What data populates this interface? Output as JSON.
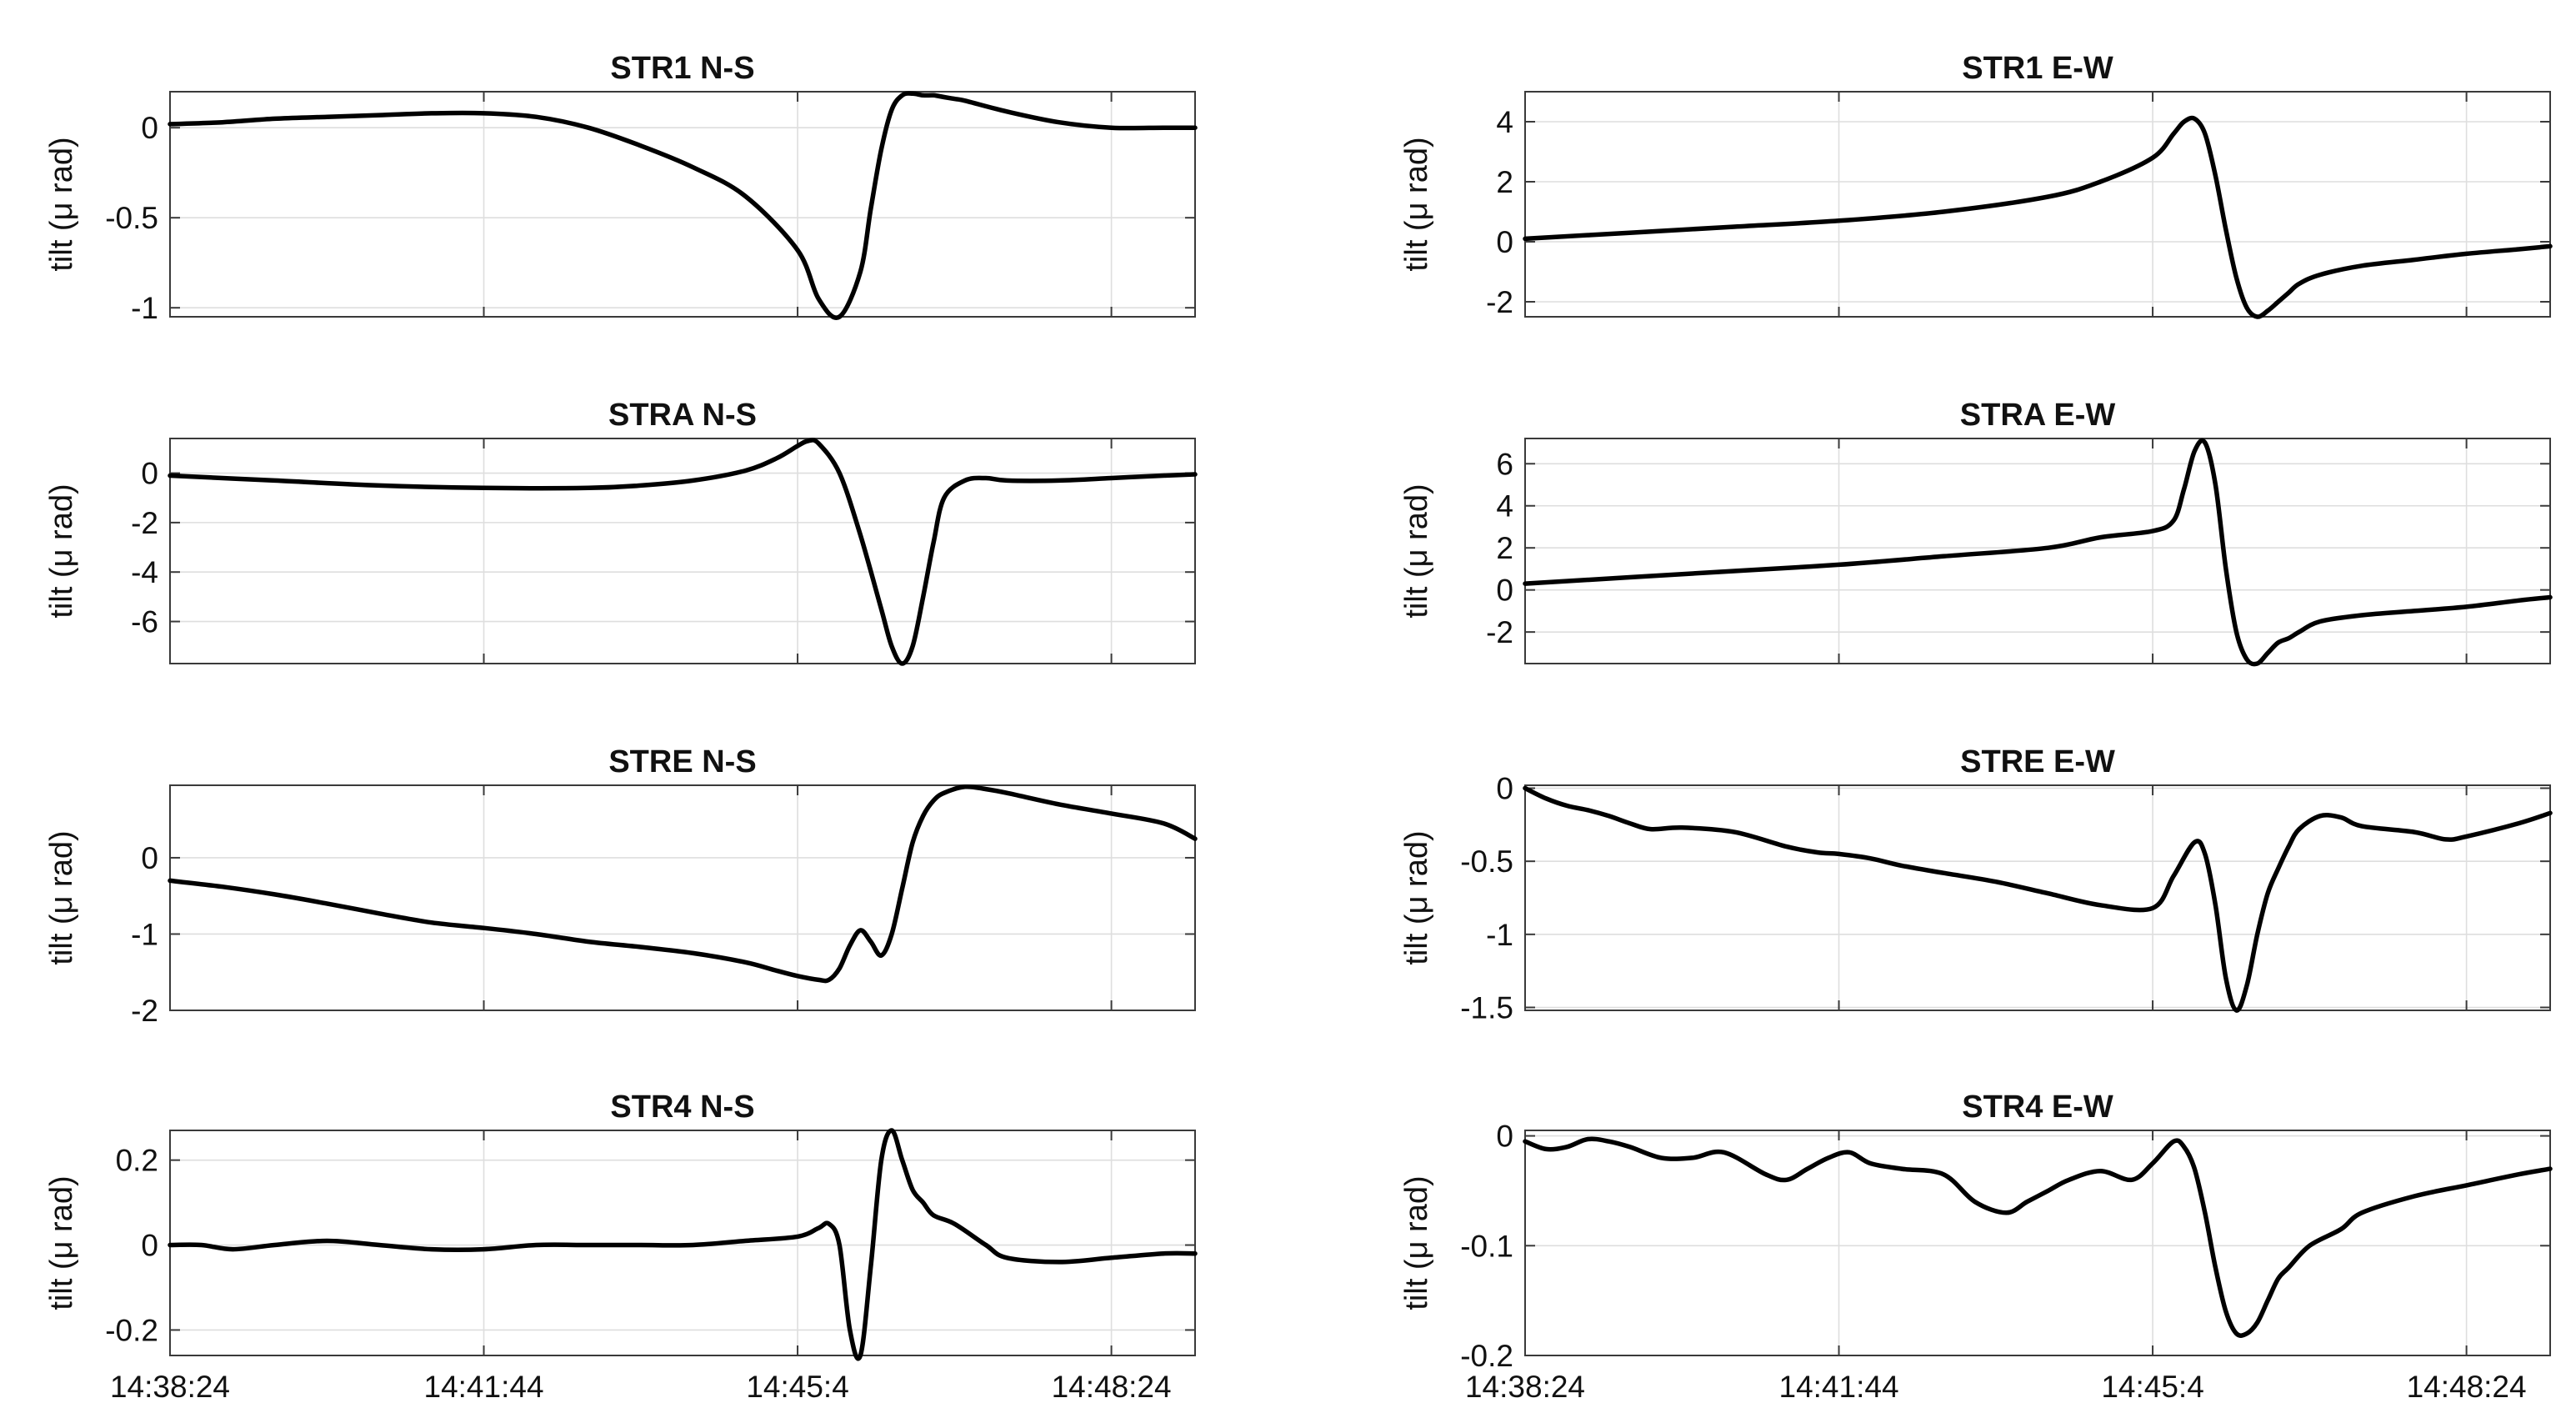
{
  "chart_data": [
    {
      "type": "line",
      "title": "STR1 N-S",
      "ylabel": "tilt (μ rad)",
      "x_ticks": [
        "14:38:24",
        "14:41:44",
        "14:45:4",
        "14:48:24"
      ],
      "ylim": [
        -1.05,
        0.2
      ],
      "y_ticks": [
        0,
        -0.5,
        -1
      ],
      "y_tick_labels": [
        "0",
        "-0.5",
        "-1"
      ],
      "x": [
        0,
        50,
        100,
        150,
        200,
        250,
        300,
        350,
        400,
        450,
        500,
        550,
        600,
        620,
        640,
        660,
        670,
        680,
        690,
        700,
        710,
        720,
        730,
        740,
        750,
        760,
        800,
        850,
        900,
        950,
        980
      ],
      "y": [
        0.02,
        0.03,
        0.05,
        0.06,
        0.07,
        0.08,
        0.08,
        0.06,
        0.0,
        -0.1,
        -0.22,
        -0.38,
        -0.68,
        -0.95,
        -1.05,
        -0.8,
        -0.45,
        -0.12,
        0.1,
        0.18,
        0.19,
        0.18,
        0.18,
        0.17,
        0.16,
        0.15,
        0.09,
        0.03,
        0.0,
        0.0,
        0.0
      ]
    },
    {
      "type": "line",
      "title": "STR1 E-W",
      "ylabel": "tilt (μ rad)",
      "x_ticks": [
        "14:38:24",
        "14:41:44",
        "14:45:4",
        "14:48:24"
      ],
      "ylim": [
        -2.5,
        5
      ],
      "y_ticks": [
        4,
        2,
        0,
        -2
      ],
      "y_tick_labels": [
        "4",
        "2",
        "0",
        "-2"
      ],
      "x": [
        0,
        100,
        200,
        300,
        400,
        500,
        550,
        600,
        620,
        630,
        640,
        650,
        660,
        670,
        680,
        690,
        700,
        710,
        720,
        730,
        740,
        760,
        800,
        850,
        900,
        950,
        980
      ],
      "y": [
        0.1,
        0.3,
        0.5,
        0.7,
        1.0,
        1.5,
        2.0,
        2.8,
        3.6,
        4.0,
        4.1,
        3.6,
        2.2,
        0.4,
        -1.2,
        -2.2,
        -2.5,
        -2.3,
        -2.0,
        -1.7,
        -1.4,
        -1.1,
        -0.8,
        -0.6,
        -0.4,
        -0.25,
        -0.15
      ]
    },
    {
      "type": "line",
      "title": "STRA N-S",
      "ylabel": "tilt (μ rad)",
      "x_ticks": [
        "14:38:24",
        "14:41:44",
        "14:45:4",
        "14:48:24"
      ],
      "ylim": [
        -7.7,
        1.4
      ],
      "y_ticks": [
        0,
        -2,
        -4,
        -6
      ],
      "y_tick_labels": [
        "0",
        "-2",
        "-4",
        "-6"
      ],
      "x": [
        0,
        100,
        200,
        300,
        400,
        450,
        500,
        550,
        580,
        600,
        610,
        620,
        640,
        660,
        680,
        690,
        700,
        710,
        720,
        730,
        740,
        760,
        780,
        800,
        850,
        900,
        950,
        980
      ],
      "y": [
        -0.1,
        -0.3,
        -0.5,
        -0.6,
        -0.6,
        -0.5,
        -0.3,
        0.1,
        0.6,
        1.1,
        1.3,
        1.2,
        0.0,
        -2.5,
        -5.5,
        -7.0,
        -7.7,
        -7.0,
        -5.0,
        -2.8,
        -1.0,
        -0.3,
        -0.2,
        -0.3,
        -0.3,
        -0.2,
        -0.1,
        -0.05
      ]
    },
    {
      "type": "line",
      "title": "STRA E-W",
      "ylabel": "tilt (μ rad)",
      "x_ticks": [
        "14:38:24",
        "14:41:44",
        "14:45:4",
        "14:48:24"
      ],
      "ylim": [
        -3.5,
        7.2
      ],
      "y_ticks": [
        6,
        4,
        2,
        0,
        -2
      ],
      "y_tick_labels": [
        "6",
        "4",
        "2",
        "0",
        "-2"
      ],
      "x": [
        0,
        100,
        200,
        300,
        400,
        500,
        550,
        600,
        620,
        630,
        640,
        650,
        660,
        670,
        680,
        690,
        700,
        710,
        720,
        730,
        740,
        760,
        800,
        850,
        900,
        950,
        980
      ],
      "y": [
        0.3,
        0.6,
        0.9,
        1.2,
        1.6,
        2.0,
        2.5,
        2.8,
        3.3,
        4.8,
        6.6,
        7.0,
        5.0,
        1.0,
        -2.0,
        -3.3,
        -3.5,
        -3.0,
        -2.5,
        -2.3,
        -2.0,
        -1.5,
        -1.2,
        -1.0,
        -0.8,
        -0.5,
        -0.35
      ]
    },
    {
      "type": "line",
      "title": "STRE N-S",
      "ylabel": "tilt (μ rad)",
      "x_ticks": [
        "14:38:24",
        "14:41:44",
        "14:45:4",
        "14:48:24"
      ],
      "ylim": [
        -2,
        0.95
      ],
      "y_ticks": [
        0,
        -1,
        -2
      ],
      "y_tick_labels": [
        "0",
        "-1",
        "-2"
      ],
      "x": [
        0,
        50,
        100,
        150,
        200,
        250,
        300,
        350,
        400,
        450,
        500,
        550,
        580,
        600,
        620,
        630,
        640,
        650,
        660,
        670,
        680,
        690,
        700,
        710,
        720,
        730,
        740,
        760,
        780,
        800,
        850,
        900,
        950,
        980
      ],
      "y": [
        -0.3,
        -0.38,
        -0.48,
        -0.6,
        -0.73,
        -0.85,
        -0.92,
        -1.0,
        -1.1,
        -1.17,
        -1.25,
        -1.37,
        -1.48,
        -1.55,
        -1.6,
        -1.6,
        -1.45,
        -1.15,
        -0.95,
        -1.1,
        -1.28,
        -1.0,
        -0.4,
        0.2,
        0.55,
        0.75,
        0.85,
        0.93,
        0.9,
        0.85,
        0.7,
        0.58,
        0.45,
        0.25
      ]
    },
    {
      "type": "line",
      "title": "STRE E-W",
      "ylabel": "tilt (μ rad)",
      "x_ticks": [
        "14:38:24",
        "14:41:44",
        "14:45:4",
        "14:48:24"
      ],
      "ylim": [
        -1.52,
        0.02
      ],
      "y_ticks": [
        0,
        -0.5,
        -1,
        -1.5
      ],
      "y_tick_labels": [
        "0",
        "-0.5",
        "-1",
        "-1.5"
      ],
      "x": [
        0,
        20,
        40,
        60,
        80,
        100,
        120,
        150,
        200,
        250,
        280,
        300,
        330,
        360,
        400,
        450,
        500,
        550,
        600,
        620,
        640,
        650,
        660,
        670,
        680,
        690,
        700,
        710,
        720,
        730,
        740,
        760,
        780,
        800,
        850,
        880,
        900,
        950,
        980
      ],
      "y": [
        0.0,
        -0.07,
        -0.12,
        -0.15,
        -0.19,
        -0.24,
        -0.28,
        -0.27,
        -0.3,
        -0.4,
        -0.44,
        -0.45,
        -0.48,
        -0.53,
        -0.58,
        -0.64,
        -0.72,
        -0.8,
        -0.82,
        -0.6,
        -0.37,
        -0.45,
        -0.8,
        -1.3,
        -1.52,
        -1.35,
        -1.0,
        -0.72,
        -0.55,
        -0.4,
        -0.28,
        -0.19,
        -0.2,
        -0.26,
        -0.3,
        -0.35,
        -0.33,
        -0.24,
        -0.17
      ]
    },
    {
      "type": "line",
      "title": "STR4 N-S",
      "ylabel": "tilt (μ rad)",
      "x_ticks": [
        "14:38:24",
        "14:41:44",
        "14:45:4",
        "14:48:24"
      ],
      "ylim": [
        -0.26,
        0.27
      ],
      "y_ticks": [
        0.2,
        0,
        -0.2
      ],
      "y_tick_labels": [
        "0.2",
        "0",
        "-0.2"
      ],
      "x": [
        0,
        30,
        60,
        100,
        150,
        200,
        250,
        300,
        350,
        400,
        450,
        500,
        550,
        600,
        620,
        630,
        640,
        650,
        660,
        670,
        680,
        690,
        700,
        710,
        720,
        730,
        750,
        780,
        800,
        850,
        900,
        950,
        980
      ],
      "y": [
        0.0,
        0.0,
        -0.01,
        0.0,
        0.01,
        0.0,
        -0.01,
        -0.01,
        0.0,
        0.0,
        0.0,
        0.0,
        0.01,
        0.02,
        0.04,
        0.05,
        0.0,
        -0.2,
        -0.26,
        -0.05,
        0.2,
        0.27,
        0.2,
        0.13,
        0.1,
        0.07,
        0.05,
        0.0,
        -0.03,
        -0.04,
        -0.03,
        -0.02,
        -0.02
      ]
    },
    {
      "type": "line",
      "title": "STR4 E-W",
      "ylabel": "tilt (μ rad)",
      "x_ticks": [
        "14:38:24",
        "14:41:44",
        "14:45:4",
        "14:48:24"
      ],
      "ylim": [
        -0.2,
        0.005
      ],
      "y_ticks": [
        0,
        -0.1,
        -0.2
      ],
      "y_tick_labels": [
        "0",
        "-0.1",
        "-0.2"
      ],
      "x": [
        0,
        20,
        40,
        60,
        80,
        100,
        130,
        160,
        190,
        230,
        250,
        270,
        290,
        310,
        330,
        360,
        400,
        430,
        460,
        480,
        500,
        520,
        550,
        580,
        600,
        620,
        630,
        640,
        650,
        660,
        670,
        680,
        690,
        700,
        710,
        720,
        730,
        750,
        780,
        800,
        850,
        900,
        950,
        980
      ],
      "y": [
        -0.005,
        -0.012,
        -0.01,
        -0.003,
        -0.005,
        -0.01,
        -0.02,
        -0.02,
        -0.015,
        -0.035,
        -0.04,
        -0.03,
        -0.02,
        -0.015,
        -0.025,
        -0.03,
        -0.035,
        -0.06,
        -0.07,
        -0.06,
        -0.05,
        -0.04,
        -0.032,
        -0.04,
        -0.025,
        -0.005,
        -0.01,
        -0.03,
        -0.07,
        -0.12,
        -0.16,
        -0.18,
        -0.18,
        -0.17,
        -0.15,
        -0.13,
        -0.12,
        -0.1,
        -0.085,
        -0.07,
        -0.055,
        -0.045,
        -0.035,
        -0.03
      ]
    }
  ]
}
